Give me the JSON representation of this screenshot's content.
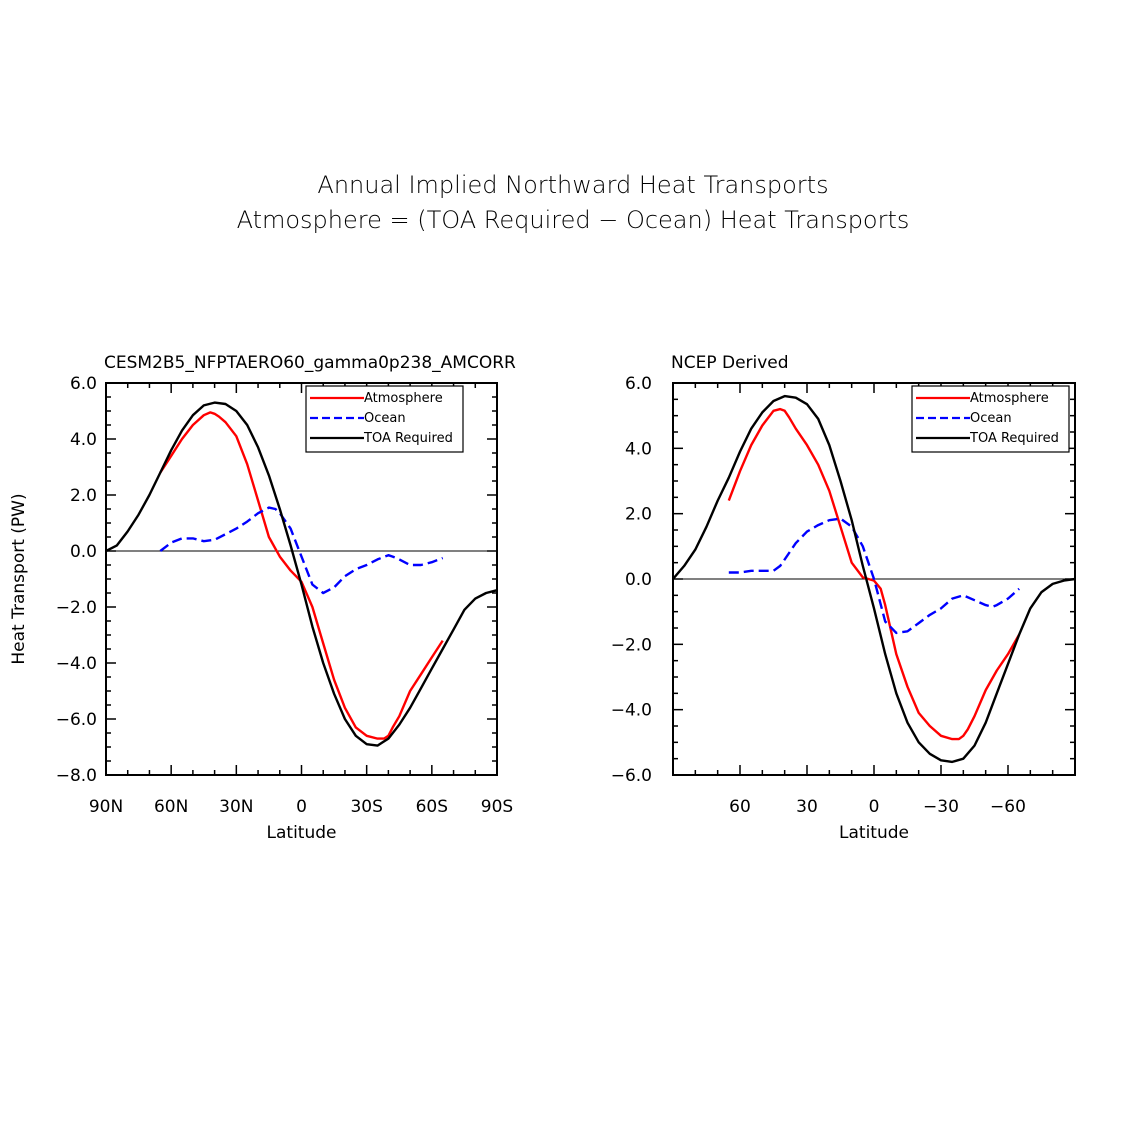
{
  "header": {
    "line1": "Annual Implied Northward Heat Transports",
    "line2": "Atmosphere = (TOA Required − Ocean) Heat Transports"
  },
  "colors": {
    "atmosphere": "#ff0000",
    "ocean": "#0000ff",
    "toa": "#000000"
  },
  "chart_data": [
    {
      "type": "line",
      "title": "CESM2B5_NFPTAERO60_gamma0p238_AMCORR",
      "xlabel": "Latitude",
      "ylabel": "Heat Transport (PW)",
      "xlim": [
        90,
        -90
      ],
      "ylim": [
        -8,
        6
      ],
      "xticks": [
        {
          "value": 90,
          "label": "90N"
        },
        {
          "value": 60,
          "label": "60N"
        },
        {
          "value": 30,
          "label": "30N"
        },
        {
          "value": 0,
          "label": "0"
        },
        {
          "value": -30,
          "label": "30S"
        },
        {
          "value": -60,
          "label": "60S"
        },
        {
          "value": -90,
          "label": "90S"
        }
      ],
      "yticks": [
        {
          "value": 6,
          "label": "6.0"
        },
        {
          "value": 4,
          "label": "4.0"
        },
        {
          "value": 2,
          "label": "2.0"
        },
        {
          "value": 0,
          "label": "0.0"
        },
        {
          "value": -2,
          "label": "−2.0"
        },
        {
          "value": -4,
          "label": "−4.0"
        },
        {
          "value": -6,
          "label": "−6.0"
        },
        {
          "value": -8,
          "label": "−8.0"
        }
      ],
      "legend": {
        "position": "top-right",
        "entries": [
          "Atmosphere",
          "Ocean",
          "TOA Required"
        ]
      },
      "series": [
        {
          "name": "Atmosphere",
          "style": "solid",
          "x": [
            65,
            60,
            55,
            50,
            45,
            42,
            40,
            38,
            35,
            30,
            25,
            20,
            15,
            10,
            5,
            0,
            -5,
            -10,
            -15,
            -20,
            -25,
            -30,
            -35,
            -38,
            -40,
            -42,
            -45,
            -50,
            -55,
            -60,
            -65
          ],
          "y": [
            2.8,
            3.4,
            4.0,
            4.5,
            4.85,
            4.95,
            4.9,
            4.8,
            4.6,
            4.1,
            3.1,
            1.8,
            0.5,
            -0.2,
            -0.7,
            -1.1,
            -2.0,
            -3.3,
            -4.6,
            -5.6,
            -6.3,
            -6.6,
            -6.7,
            -6.7,
            -6.6,
            -6.3,
            -5.9,
            -5.0,
            -4.4,
            -3.8,
            -3.2
          ]
        },
        {
          "name": "Ocean",
          "style": "dashed",
          "x": [
            65,
            60,
            55,
            50,
            45,
            40,
            35,
            30,
            25,
            20,
            15,
            12,
            10,
            5,
            0,
            -5,
            -10,
            -15,
            -20,
            -25,
            -30,
            -35,
            -40,
            -42,
            -45,
            -50,
            -55,
            -60,
            -65
          ],
          "y": [
            0.0,
            0.3,
            0.45,
            0.45,
            0.35,
            0.4,
            0.6,
            0.8,
            1.05,
            1.35,
            1.55,
            1.5,
            1.35,
            0.8,
            -0.2,
            -1.2,
            -1.5,
            -1.3,
            -0.9,
            -0.65,
            -0.5,
            -0.3,
            -0.15,
            -0.2,
            -0.3,
            -0.5,
            -0.5,
            -0.4,
            -0.25
          ]
        },
        {
          "name": "TOA Required",
          "style": "solid",
          "x": [
            90,
            85,
            80,
            75,
            70,
            65,
            60,
            55,
            50,
            45,
            40,
            35,
            30,
            25,
            20,
            15,
            10,
            5,
            0,
            -5,
            -10,
            -15,
            -20,
            -25,
            -30,
            -35,
            -40,
            -45,
            -50,
            -55,
            -60,
            -65,
            -70,
            -75,
            -80,
            -85,
            -90
          ],
          "y": [
            0.0,
            0.2,
            0.7,
            1.3,
            2.0,
            2.8,
            3.6,
            4.3,
            4.85,
            5.2,
            5.3,
            5.25,
            5.0,
            4.5,
            3.7,
            2.7,
            1.5,
            0.2,
            -1.2,
            -2.7,
            -4.0,
            -5.1,
            -6.0,
            -6.6,
            -6.9,
            -6.95,
            -6.7,
            -6.2,
            -5.6,
            -4.9,
            -4.2,
            -3.5,
            -2.8,
            -2.1,
            -1.7,
            -1.5,
            -1.4
          ]
        }
      ]
    },
    {
      "type": "line",
      "title": "NCEP Derived",
      "xlabel": "Latitude",
      "ylabel": "",
      "xlim": [
        90,
        -90
      ],
      "ylim": [
        -6,
        6
      ],
      "xticks": [
        {
          "value": 60,
          "label": "60"
        },
        {
          "value": 30,
          "label": "30"
        },
        {
          "value": 0,
          "label": "0"
        },
        {
          "value": -30,
          "label": "−30"
        },
        {
          "value": -60,
          "label": "−60"
        }
      ],
      "yticks": [
        {
          "value": 6,
          "label": "6.0"
        },
        {
          "value": 4,
          "label": "4.0"
        },
        {
          "value": 2,
          "label": "2.0"
        },
        {
          "value": 0,
          "label": "0.0"
        },
        {
          "value": -2,
          "label": "−2.0"
        },
        {
          "value": -4,
          "label": "−4.0"
        },
        {
          "value": -6,
          "label": "−6.0"
        }
      ],
      "legend": {
        "position": "top-right",
        "entries": [
          "Atmosphere",
          "Ocean",
          "TOA Required"
        ]
      },
      "series": [
        {
          "name": "Atmosphere",
          "style": "solid",
          "x": [
            65,
            60,
            55,
            50,
            45,
            42,
            40,
            38,
            35,
            30,
            25,
            20,
            15,
            10,
            5,
            0,
            -3,
            -5,
            -10,
            -15,
            -20,
            -25,
            -30,
            -35,
            -38,
            -40,
            -42,
            -45,
            -50,
            -55,
            -60,
            -65
          ],
          "y": [
            2.4,
            3.3,
            4.1,
            4.7,
            5.15,
            5.2,
            5.15,
            4.95,
            4.6,
            4.1,
            3.5,
            2.7,
            1.6,
            0.5,
            0.05,
            -0.05,
            -0.3,
            -0.8,
            -2.3,
            -3.3,
            -4.1,
            -4.5,
            -4.8,
            -4.9,
            -4.9,
            -4.8,
            -4.6,
            -4.2,
            -3.4,
            -2.8,
            -2.3,
            -1.7
          ]
        },
        {
          "name": "Ocean",
          "style": "dashed",
          "x": [
            65,
            60,
            55,
            50,
            45,
            42,
            40,
            35,
            30,
            25,
            20,
            15,
            10,
            5,
            0,
            -5,
            -10,
            -15,
            -20,
            -25,
            -30,
            -35,
            -40,
            -45,
            -50,
            -53,
            -55,
            -60,
            -65
          ],
          "y": [
            0.2,
            0.2,
            0.25,
            0.25,
            0.25,
            0.4,
            0.6,
            1.1,
            1.45,
            1.65,
            1.8,
            1.85,
            1.6,
            1.0,
            0.0,
            -1.3,
            -1.65,
            -1.6,
            -1.35,
            -1.1,
            -0.9,
            -0.6,
            -0.5,
            -0.65,
            -0.8,
            -0.85,
            -0.8,
            -0.6,
            -0.3
          ]
        },
        {
          "name": "TOA Required",
          "style": "solid",
          "x": [
            90,
            85,
            80,
            75,
            70,
            65,
            60,
            55,
            50,
            45,
            40,
            35,
            30,
            25,
            20,
            15,
            10,
            5,
            0,
            -5,
            -10,
            -15,
            -20,
            -25,
            -30,
            -35,
            -40,
            -45,
            -50,
            -55,
            -60,
            -65,
            -70,
            -75,
            -80,
            -85,
            -90
          ],
          "y": [
            0.0,
            0.4,
            0.9,
            1.6,
            2.4,
            3.1,
            3.9,
            4.6,
            5.1,
            5.45,
            5.6,
            5.55,
            5.35,
            4.9,
            4.1,
            3.0,
            1.8,
            0.4,
            -0.9,
            -2.3,
            -3.5,
            -4.4,
            -5.0,
            -5.35,
            -5.55,
            -5.6,
            -5.5,
            -5.1,
            -4.4,
            -3.5,
            -2.6,
            -1.7,
            -0.9,
            -0.4,
            -0.15,
            -0.05,
            0.0
          ]
        }
      ]
    }
  ]
}
